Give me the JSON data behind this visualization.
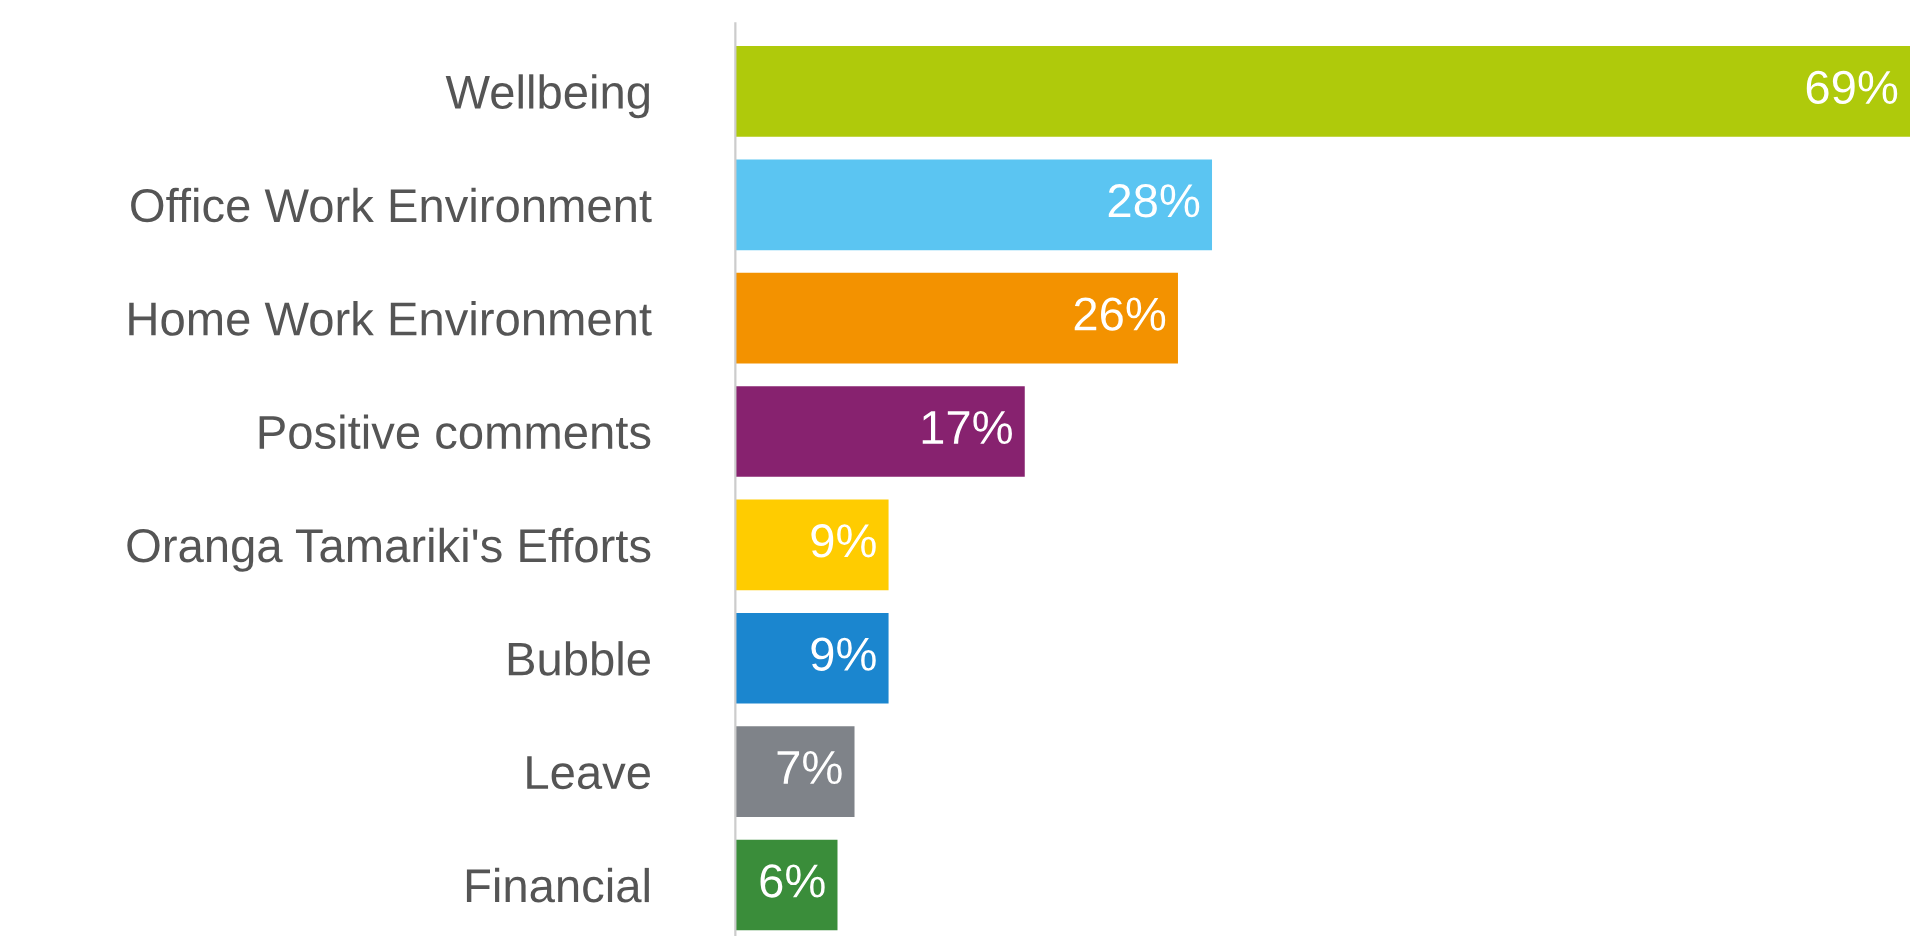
{
  "chart_data": {
    "type": "bar",
    "orientation": "horizontal",
    "categories": [
      "Wellbeing",
      "Office Work Environment",
      "Home Work Environment",
      "Positive comments",
      "Oranga Tamariki's Efforts",
      "Bubble",
      "Leave",
      "Financial"
    ],
    "values": [
      69,
      28,
      26,
      17,
      9,
      9,
      7,
      6
    ],
    "value_labels": [
      "69%",
      "28%",
      "26%",
      "17%",
      "9%",
      "9%",
      "7%",
      "6%"
    ],
    "colors": [
      "#afca0b",
      "#5bc5f2",
      "#f39200",
      "#87226f",
      "#ffcc00",
      "#1b86cf",
      "#7f8389",
      "#3a8d3a"
    ],
    "grid": false,
    "legend": false
  }
}
